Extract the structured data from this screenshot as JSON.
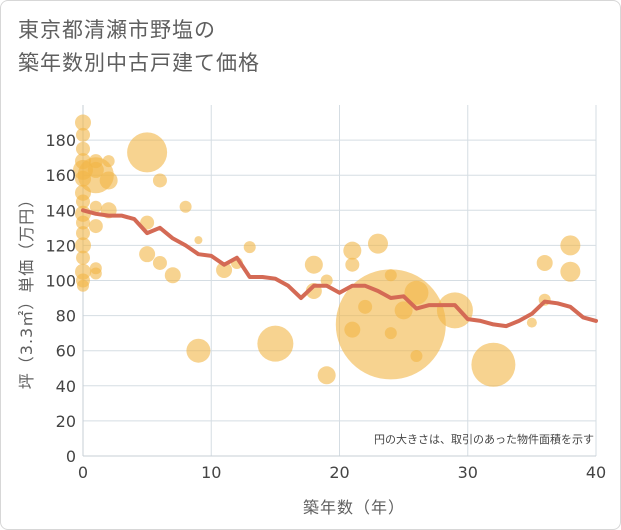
{
  "title": {
    "line1": "東京都清瀬市野塩の",
    "line2": "築年数別中古戸建て価格"
  },
  "chart_data": {
    "type": "scatter",
    "title": "東京都清瀬市野塩の築年数別中古戸建て価格",
    "xlabel": "築年数（年）",
    "ylabel": "坪（3.3㎡）単価（万円）",
    "xlim": [
      0,
      40
    ],
    "ylim": [
      0,
      200
    ],
    "x_ticks": [
      0,
      10,
      20,
      30,
      40
    ],
    "y_ticks": [
      0,
      20,
      40,
      60,
      80,
      100,
      120,
      140,
      160,
      180
    ],
    "grid": true,
    "note": "円の大きさは、取引のあった物件面積を示す",
    "colors": {
      "bubble": "#f2b546",
      "line": "#d46a55",
      "grid": "#d5dde3"
    },
    "bubbles": [
      {
        "x": 0,
        "y": 190,
        "size": 8
      },
      {
        "x": 0,
        "y": 183,
        "size": 7
      },
      {
        "x": 0,
        "y": 175,
        "size": 7
      },
      {
        "x": 0,
        "y": 168,
        "size": 8
      },
      {
        "x": 0,
        "y": 163,
        "size": 10
      },
      {
        "x": 0,
        "y": 158,
        "size": 8
      },
      {
        "x": 0,
        "y": 150,
        "size": 8
      },
      {
        "x": 0,
        "y": 145,
        "size": 7
      },
      {
        "x": 0,
        "y": 138,
        "size": 8
      },
      {
        "x": 0,
        "y": 133,
        "size": 7
      },
      {
        "x": 0,
        "y": 127,
        "size": 7
      },
      {
        "x": 0,
        "y": 120,
        "size": 8
      },
      {
        "x": 0,
        "y": 113,
        "size": 7
      },
      {
        "x": 0,
        "y": 105,
        "size": 8
      },
      {
        "x": 0,
        "y": 100,
        "size": 7
      },
      {
        "x": 0,
        "y": 97,
        "size": 6
      },
      {
        "x": 1,
        "y": 160,
        "size": 18
      },
      {
        "x": 1,
        "y": 163,
        "size": 8
      },
      {
        "x": 1,
        "y": 168,
        "size": 7
      },
      {
        "x": 1,
        "y": 142,
        "size": 6
      },
      {
        "x": 1,
        "y": 131,
        "size": 7
      },
      {
        "x": 1,
        "y": 107,
        "size": 6
      },
      {
        "x": 1,
        "y": 104,
        "size": 6
      },
      {
        "x": 2,
        "y": 157,
        "size": 9
      },
      {
        "x": 2,
        "y": 168,
        "size": 6
      },
      {
        "x": 2,
        "y": 140,
        "size": 8
      },
      {
        "x": 5,
        "y": 173,
        "size": 20
      },
      {
        "x": 5,
        "y": 133,
        "size": 7
      },
      {
        "x": 5,
        "y": 115,
        "size": 8
      },
      {
        "x": 6,
        "y": 157,
        "size": 7
      },
      {
        "x": 6,
        "y": 110,
        "size": 7
      },
      {
        "x": 7,
        "y": 103,
        "size": 8
      },
      {
        "x": 8,
        "y": 142,
        "size": 6
      },
      {
        "x": 9,
        "y": 123,
        "size": 4
      },
      {
        "x": 9,
        "y": 60,
        "size": 12
      },
      {
        "x": 11,
        "y": 106,
        "size": 8
      },
      {
        "x": 12,
        "y": 110,
        "size": 6
      },
      {
        "x": 13,
        "y": 119,
        "size": 6
      },
      {
        "x": 15,
        "y": 64,
        "size": 18
      },
      {
        "x": 18,
        "y": 109,
        "size": 9
      },
      {
        "x": 18,
        "y": 94,
        "size": 8
      },
      {
        "x": 19,
        "y": 100,
        "size": 6
      },
      {
        "x": 19,
        "y": 46,
        "size": 9
      },
      {
        "x": 21,
        "y": 117,
        "size": 9
      },
      {
        "x": 21,
        "y": 109,
        "size": 7
      },
      {
        "x": 21,
        "y": 72,
        "size": 8
      },
      {
        "x": 22,
        "y": 85,
        "size": 7
      },
      {
        "x": 23,
        "y": 121,
        "size": 10
      },
      {
        "x": 24,
        "y": 103,
        "size": 6
      },
      {
        "x": 24,
        "y": 75,
        "size": 55
      },
      {
        "x": 24,
        "y": 70,
        "size": 6
      },
      {
        "x": 25,
        "y": 83,
        "size": 9
      },
      {
        "x": 26,
        "y": 93,
        "size": 12
      },
      {
        "x": 26,
        "y": 57,
        "size": 6
      },
      {
        "x": 29,
        "y": 83,
        "size": 18
      },
      {
        "x": 32,
        "y": 52,
        "size": 22
      },
      {
        "x": 35,
        "y": 76,
        "size": 5
      },
      {
        "x": 36,
        "y": 110,
        "size": 8
      },
      {
        "x": 36,
        "y": 89,
        "size": 6
      },
      {
        "x": 38,
        "y": 120,
        "size": 10
      },
      {
        "x": 38,
        "y": 105,
        "size": 10
      }
    ],
    "line": {
      "x": [
        0,
        1,
        2,
        3,
        4,
        5,
        6,
        7,
        8,
        9,
        10,
        11,
        12,
        13,
        14,
        15,
        16,
        17,
        18,
        19,
        20,
        21,
        22,
        23,
        24,
        25,
        26,
        27,
        28,
        29,
        30,
        31,
        32,
        33,
        34,
        35,
        36,
        37,
        38,
        39,
        40
      ],
      "y": [
        140,
        138,
        137,
        137,
        135,
        127,
        130,
        124,
        120,
        115,
        114,
        109,
        113,
        102,
        102,
        101,
        97,
        90,
        97,
        97,
        93,
        97,
        97,
        94,
        90,
        91,
        84,
        86,
        86,
        86,
        78,
        77,
        75,
        74,
        77,
        81,
        88,
        87,
        85,
        79,
        77
      ]
    }
  }
}
